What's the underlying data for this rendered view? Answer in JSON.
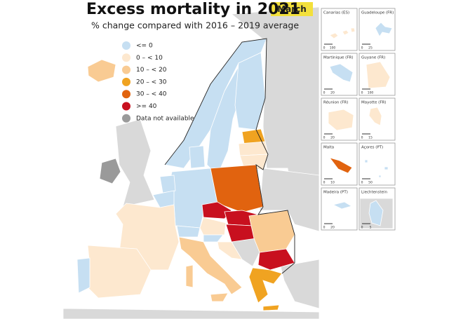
{
  "title": "Excess mortality in 2021",
  "period": "March",
  "subtitle": "% change compared with 2016 – 2019 average",
  "legend": [
    {
      "label": "<= 0",
      "color": "#c6dff2"
    },
    {
      "label": "0 – < 10",
      "color": "#fde8cf"
    },
    {
      "label": "10 – < 20",
      "color": "#f9cb93"
    },
    {
      "label": "20 – < 30",
      "color": "#f0a321"
    },
    {
      "label": "30 – < 40",
      "color": "#e1630f"
    },
    {
      "label": ">= 40",
      "color": "#c8101f"
    },
    {
      "label": "Data not available",
      "color": "#9a9a9a"
    }
  ],
  "insets": [
    {
      "label": "Canarias (ES)",
      "scale": [
        "0",
        "100"
      ]
    },
    {
      "label": "Guadeloupe (FR)",
      "scale": [
        "0",
        "25"
      ]
    },
    {
      "label": "Martinique (FR)",
      "scale": [
        "0",
        "20"
      ]
    },
    {
      "label": "Guyane (FR)",
      "scale": [
        "0",
        "100"
      ]
    },
    {
      "label": "Réunion (FR)",
      "scale": [
        "0",
        "20"
      ]
    },
    {
      "label": "Mayotte (FR)",
      "scale": [
        "0",
        "15"
      ]
    },
    {
      "label": "Malta",
      "scale": [
        "0",
        "10"
      ]
    },
    {
      "label": "Açores (PT)",
      "scale": [
        "0",
        "50"
      ]
    },
    {
      "label": "Madeira (PT)",
      "scale": [
        "0",
        "20"
      ]
    },
    {
      "label": "Liechtenstein",
      "scale": [
        "0",
        "5"
      ]
    }
  ]
}
